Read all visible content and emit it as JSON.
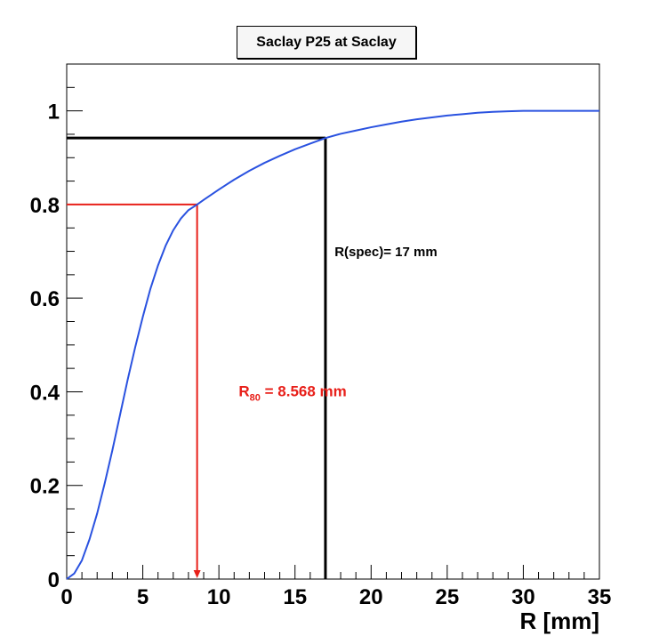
{
  "chart_data": {
    "type": "line",
    "title": "Saclay P25 at Saclay",
    "xlabel": "R [mm]",
    "ylabel": "",
    "xlim": [
      0,
      35
    ],
    "ylim": [
      0,
      1.1
    ],
    "x_ticks": [
      0,
      5,
      10,
      15,
      20,
      25,
      30,
      35
    ],
    "y_ticks": [
      0,
      0.2,
      0.4,
      0.6,
      0.8,
      1
    ],
    "x_tick_labels": [
      "0",
      "5",
      "10",
      "15",
      "20",
      "25",
      "30",
      "35"
    ],
    "y_tick_labels": [
      "0",
      "0.2",
      "0.4",
      "0.6",
      "0.8",
      "1"
    ],
    "grid": false,
    "series": [
      {
        "color": "#2a52e0",
        "x": [
          0,
          0.5,
          1,
          1.5,
          2,
          2.5,
          3,
          3.5,
          4,
          4.5,
          5,
          5.5,
          6,
          6.5,
          7,
          7.5,
          8,
          8.568,
          9,
          10,
          11,
          12,
          13,
          14,
          15,
          16,
          17,
          18,
          19,
          20,
          21,
          22,
          23,
          24,
          25,
          26,
          27,
          28,
          29,
          30,
          31,
          32,
          33,
          34,
          35
        ],
        "y": [
          0,
          0.012,
          0.04,
          0.085,
          0.14,
          0.205,
          0.275,
          0.35,
          0.425,
          0.495,
          0.56,
          0.62,
          0.67,
          0.712,
          0.745,
          0.77,
          0.788,
          0.8,
          0.81,
          0.832,
          0.853,
          0.872,
          0.889,
          0.904,
          0.918,
          0.93,
          0.942,
          0.951,
          0.958,
          0.965,
          0.971,
          0.977,
          0.982,
          0.986,
          0.99,
          0.993,
          0.996,
          0.998,
          0.999,
          1.0,
          1.0,
          1.0,
          1.0,
          1.0,
          1.0
        ]
      }
    ],
    "annotations": {
      "r80": {
        "x": 8.568,
        "y": 0.8,
        "color": "#e8201a",
        "label_main": "R",
        "label_sub": "80",
        "label_rest": " = 8.568 mm",
        "label_at": [
          11.3,
          0.39
        ]
      },
      "rspec": {
        "x": 17,
        "y": 0.942,
        "color": "#000000",
        "label": "R(spec)= 17 mm",
        "label_at": [
          17.6,
          0.69
        ]
      }
    }
  }
}
